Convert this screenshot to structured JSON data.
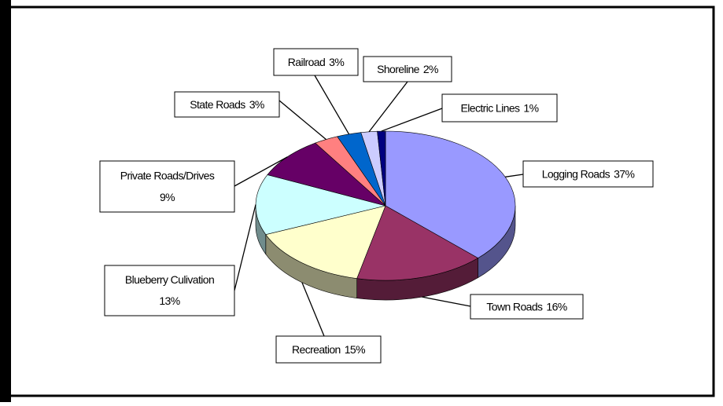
{
  "chart_data": {
    "type": "pie3d",
    "categories": [
      "Logging Roads",
      "Town Roads",
      "Recreation",
      "Blueberry Culivation",
      "Private Roads/Drives",
      "State Roads",
      "Railroad",
      "Shoreline",
      "Electric Lines"
    ],
    "values": [
      37,
      16,
      15,
      13,
      9,
      3,
      3,
      2,
      1
    ],
    "value_labels": [
      "37%",
      "16%",
      "15%",
      "13%",
      "9%",
      "3%",
      "3%",
      "2%",
      "1%"
    ],
    "colors": [
      "#9999ff",
      "#993366",
      "#ffffcc",
      "#ccffff",
      "#660066",
      "#ff8080",
      "#0066cc",
      "#ccccff",
      "#000080"
    ]
  }
}
